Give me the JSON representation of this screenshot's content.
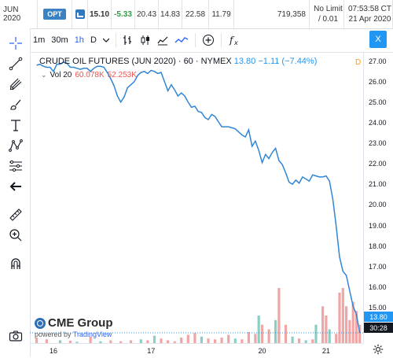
{
  "quote_strip": {
    "month": "JUN 2020",
    "opt_badge": "OPT",
    "last": "15.10",
    "change": "-5.33",
    "open": "20.43",
    "low": "14.83",
    "high": "22.58",
    "prior": "11.79",
    "volume": "719,358",
    "limit_line1": "No Limit",
    "limit_line2": "/ 0.01",
    "time_line1": "07:53:58 CT",
    "time_line2": "21 Apr 2020"
  },
  "toolbar": {
    "interval_1m": "1m",
    "interval_30m": "30m",
    "interval_1h": "1h",
    "interval_d": "D",
    "close_label": "X",
    "active_interval": "1h"
  },
  "legend": {
    "symbol": "CRUDE OIL FUTURES (JUN 2020) · 60 · NYMEX",
    "price": "13.80",
    "change": "−1.11 (−7.44%)",
    "vol_label": "Vol 20",
    "vol_value1": "60.078K",
    "vol_value2": "52.253K",
    "d_badge": "D"
  },
  "price_axis": {
    "ticks": [
      "27.00",
      "26.00",
      "25.00",
      "24.00",
      "23.00",
      "22.00",
      "21.00",
      "20.00",
      "19.00",
      "18.00",
      "17.00",
      "16.00",
      "15.00",
      "14.00"
    ],
    "last_price": "13.80",
    "countdown": "30:28"
  },
  "time_axis": {
    "ticks": [
      "16",
      "17",
      "20",
      "21"
    ]
  },
  "branding": {
    "logo": "CME Group",
    "powered_prefix": "powered by",
    "powered_by": "TradingView"
  },
  "colors": {
    "line": "#2f86d4",
    "vol_up": "#8ccfc2",
    "vol_down": "#f1a6a6",
    "accent": "#2196f3"
  },
  "chart_data": {
    "type": "line",
    "price": [
      26.85,
      26.9,
      26.8,
      26.75,
      26.75,
      26.55,
      26.9,
      26.9,
      27.0,
      26.95,
      26.75,
      26.75,
      26.7,
      26.65,
      26.7,
      26.7,
      26.55,
      26.7,
      26.8,
      26.8,
      26.75,
      26.5,
      26.2,
      25.85,
      25.35,
      25.05,
      25.3,
      25.75,
      25.9,
      26.05,
      26.35,
      26.5,
      26.55,
      26.45,
      26.6,
      26.55,
      26.45,
      26.5,
      26.05,
      25.6,
      25.9,
      25.65,
      25.35,
      25.5,
      25.35,
      25.05,
      24.8,
      24.85,
      24.6,
      24.55,
      24.3,
      24.2,
      24.45,
      24.35,
      24.1,
      23.85,
      23.85,
      23.85,
      23.8,
      23.75,
      23.6,
      23.45,
      23.35,
      23.7,
      22.9,
      23.15,
      22.7,
      22.1,
      22.5,
      22.3,
      22.6,
      22.8,
      22.2,
      22.0,
      21.6,
      21.15,
      21.05,
      21.25,
      21.1,
      21.4,
      21.3,
      21.2,
      21.5,
      21.45,
      21.4,
      21.4,
      21.45,
      21.2,
      20.3,
      19.0,
      17.5,
      16.8,
      16.6,
      15.85,
      15.1,
      14.7,
      13.8
    ],
    "volume": [
      {
        "x": 0,
        "v": 6000,
        "up": false
      },
      {
        "x": 3,
        "v": 4000,
        "up": false
      },
      {
        "x": 7,
        "v": 3000,
        "up": true
      },
      {
        "x": 10,
        "v": 2500,
        "up": false
      },
      {
        "x": 12,
        "v": 1500,
        "up": true
      },
      {
        "x": 16,
        "v": 7000,
        "up": false
      },
      {
        "x": 19,
        "v": 2000,
        "up": true
      },
      {
        "x": 22,
        "v": 3000,
        "up": false
      },
      {
        "x": 25,
        "v": 2000,
        "up": false
      },
      {
        "x": 28,
        "v": 3000,
        "up": false
      },
      {
        "x": 31,
        "v": 4000,
        "up": true
      },
      {
        "x": 33,
        "v": 3000,
        "up": false
      },
      {
        "x": 35,
        "v": 8000,
        "up": true
      },
      {
        "x": 37,
        "v": 5000,
        "up": false
      },
      {
        "x": 39,
        "v": 3000,
        "up": false
      },
      {
        "x": 41,
        "v": 2000,
        "up": false
      },
      {
        "x": 43,
        "v": 6000,
        "up": false
      },
      {
        "x": 45,
        "v": 9000,
        "up": false
      },
      {
        "x": 47,
        "v": 11000,
        "up": false
      },
      {
        "x": 49,
        "v": 7000,
        "up": true
      },
      {
        "x": 51,
        "v": 5000,
        "up": false
      },
      {
        "x": 53,
        "v": 4000,
        "up": false
      },
      {
        "x": 55,
        "v": 6000,
        "up": false
      },
      {
        "x": 57,
        "v": 9000,
        "up": false
      },
      {
        "x": 59,
        "v": 5000,
        "up": true
      },
      {
        "x": 61,
        "v": 4000,
        "up": false
      },
      {
        "x": 63,
        "v": 12000,
        "up": false
      },
      {
        "x": 65,
        "v": 10000,
        "up": false
      },
      {
        "x": 66,
        "v": 30000,
        "up": true
      },
      {
        "x": 67,
        "v": 20000,
        "up": false
      },
      {
        "x": 69,
        "v": 15000,
        "up": false
      },
      {
        "x": 71,
        "v": 25000,
        "up": true
      },
      {
        "x": 72,
        "v": 60000,
        "up": false
      },
      {
        "x": 74,
        "v": 20000,
        "up": false
      },
      {
        "x": 76,
        "v": 7000,
        "up": true
      },
      {
        "x": 78,
        "v": 5000,
        "up": false
      },
      {
        "x": 80,
        "v": 3000,
        "up": true
      },
      {
        "x": 82,
        "v": 4000,
        "up": false
      },
      {
        "x": 83,
        "v": 20000,
        "up": true
      },
      {
        "x": 85,
        "v": 40000,
        "up": false
      },
      {
        "x": 86,
        "v": 30000,
        "up": false
      },
      {
        "x": 87,
        "v": 15000,
        "up": true
      },
      {
        "x": 89,
        "v": 10000,
        "up": false
      },
      {
        "x": 90,
        "v": 55000,
        "up": false
      },
      {
        "x": 91,
        "v": 60000,
        "up": false
      },
      {
        "x": 92,
        "v": 40000,
        "up": false
      },
      {
        "x": 93,
        "v": 25000,
        "up": false
      },
      {
        "x": 94,
        "v": 45000,
        "up": false
      },
      {
        "x": 95,
        "v": 35000,
        "up": false
      },
      {
        "x": 96,
        "v": 20000,
        "up": false
      }
    ],
    "ylim": [
      13.3,
      27.5
    ],
    "xlim": [
      -2,
      97
    ],
    "xlabel": "",
    "ylabel": ""
  }
}
